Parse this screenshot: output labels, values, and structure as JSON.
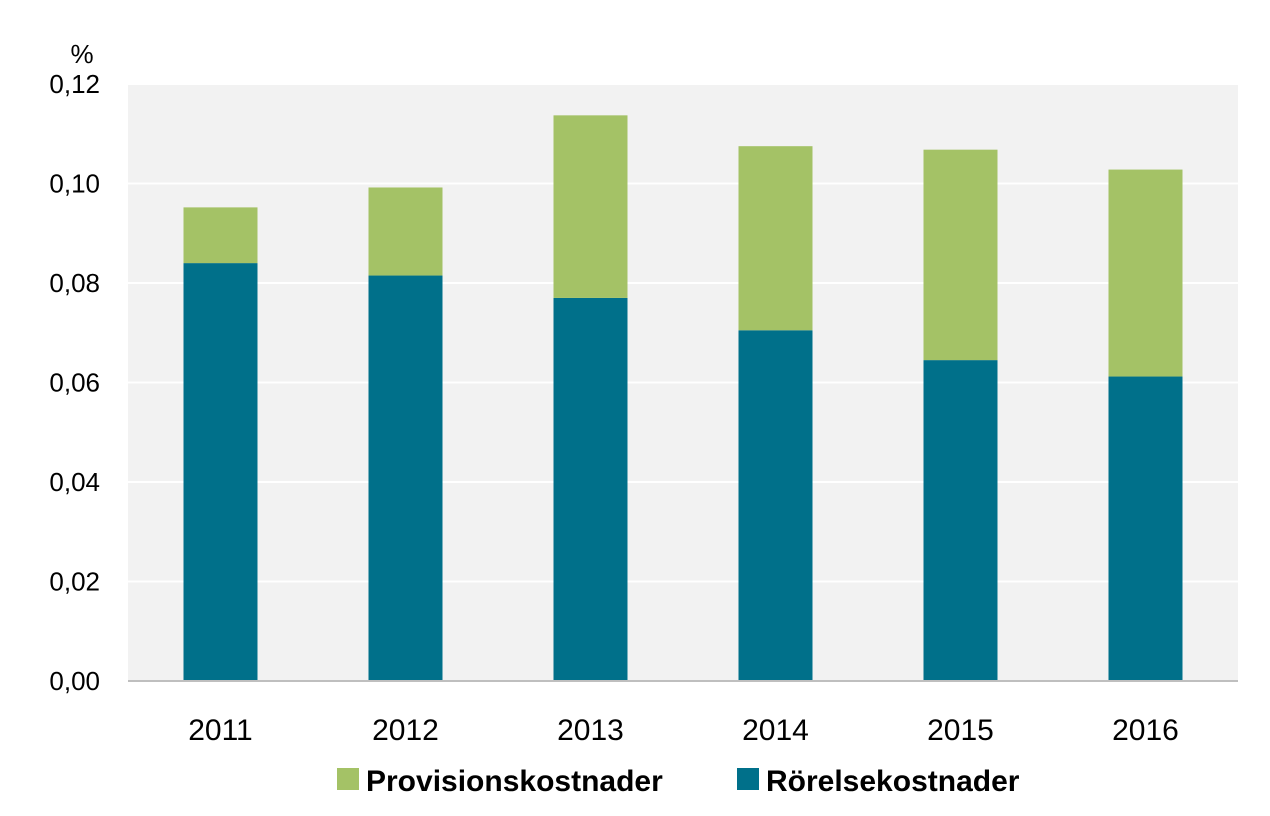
{
  "chart_data": {
    "type": "bar",
    "stacked": true,
    "ylabel": "%",
    "ylim": [
      0,
      0.12
    ],
    "yticks": [
      0,
      0.02,
      0.04,
      0.06,
      0.08,
      0.1,
      0.12
    ],
    "ytick_labels": [
      "0,00",
      "0,02",
      "0,04",
      "0,06",
      "0,08",
      "0,10",
      "0,12"
    ],
    "categories": [
      "2011",
      "2012",
      "2013",
      "2014",
      "2015",
      "2016"
    ],
    "series": [
      {
        "name": "Rörelsekostnader",
        "color": "#00708a",
        "values": [
          0.084,
          0.0815,
          0.077,
          0.0705,
          0.0645,
          0.0612
        ]
      },
      {
        "name": "Provisionskostnader",
        "color": "#a4c266",
        "values": [
          0.0112,
          0.0177,
          0.0367,
          0.037,
          0.0423,
          0.0416
        ]
      }
    ],
    "legend": {
      "position": "bottom",
      "order": [
        "Provisionskostnader",
        "Rörelsekostnader"
      ]
    },
    "grid": true,
    "plot_background": "#f2f2f2",
    "grid_color": "#ffffff"
  }
}
